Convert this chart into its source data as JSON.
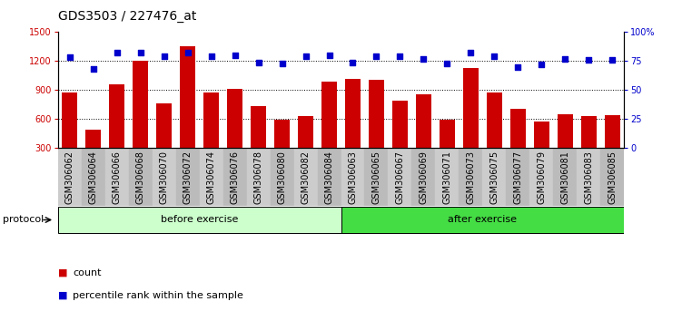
{
  "title": "GDS3503 / 227476_at",
  "categories": [
    "GSM306062",
    "GSM306064",
    "GSM306066",
    "GSM306068",
    "GSM306070",
    "GSM306072",
    "GSM306074",
    "GSM306076",
    "GSM306078",
    "GSM306080",
    "GSM306082",
    "GSM306084",
    "GSM306063",
    "GSM306065",
    "GSM306067",
    "GSM306069",
    "GSM306071",
    "GSM306073",
    "GSM306075",
    "GSM306077",
    "GSM306079",
    "GSM306081",
    "GSM306083",
    "GSM306085"
  ],
  "counts": [
    870,
    490,
    960,
    1200,
    760,
    1350,
    870,
    910,
    730,
    590,
    630,
    990,
    1010,
    1000,
    790,
    850,
    590,
    1130,
    870,
    700,
    570,
    650,
    630,
    640
  ],
  "percentiles": [
    78,
    68,
    82,
    82,
    79,
    82,
    79,
    80,
    74,
    73,
    79,
    80,
    74,
    79,
    79,
    77,
    73,
    82,
    79,
    70,
    72,
    77,
    76,
    76
  ],
  "before_count": 12,
  "after_count": 12,
  "ylim_left": [
    300,
    1500
  ],
  "ylim_right": [
    0,
    100
  ],
  "yticks_left": [
    300,
    600,
    900,
    1200,
    1500
  ],
  "yticks_right": [
    0,
    25,
    50,
    75,
    100
  ],
  "bar_color": "#cc0000",
  "dot_color": "#0000cc",
  "before_color_light": "#ccffcc",
  "after_color": "#44dd44",
  "protocol_label": "protocol",
  "before_label": "before exercise",
  "after_label": "after exercise",
  "legend_count": "count",
  "legend_pct": "percentile rank within the sample",
  "title_fontsize": 10,
  "tick_fontsize": 7,
  "label_fontsize": 8,
  "xtick_bg_even": "#cccccc",
  "xtick_bg_odd": "#bbbbbb"
}
